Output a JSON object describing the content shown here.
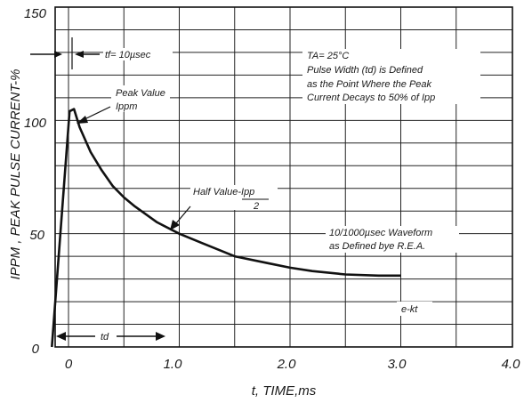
{
  "chart_data": {
    "type": "line",
    "title": "",
    "xlabel": "t, TIME,ms",
    "ylabel": "IPPM , PEAK PULSE CURRENT-%",
    "xlim": [
      -0.15,
      4.0
    ],
    "ylim": [
      0,
      150
    ],
    "x_ticks": [
      "0",
      "1.0",
      "2.0",
      "3.0",
      "4.0"
    ],
    "y_ticks": [
      "0",
      "50",
      "100",
      "150"
    ],
    "grid": true,
    "series": [
      {
        "x": [
          -0.15,
          0.01,
          0.05,
          0.1,
          0.2,
          0.3,
          0.4,
          0.5,
          0.6,
          0.8,
          1.0,
          1.2,
          1.5,
          1.8,
          2.0,
          2.2,
          2.5,
          2.8,
          3.0
        ],
        "y": [
          0,
          104,
          105,
          97,
          86,
          78,
          71,
          66,
          62,
          55,
          50,
          46,
          40,
          37,
          35,
          33.5,
          32,
          31.5,
          31.5
        ]
      }
    ],
    "annotations": {
      "tf": "tf= 10µsec",
      "ta": "TA= 25°C",
      "pulse_width_1": "Pulse Width (td) is Defined",
      "pulse_width_2": "as the Point Where the Peak",
      "pulse_width_3": "Current Decays to 50% of Ipp",
      "peak_1": "Peak Value",
      "peak_2": "Ippm",
      "half_1": "Half Value-Ipp",
      "half_2": "2",
      "waveform_1": "10/1000µsec Waveform",
      "waveform_2": "as Defined bye R.E.A.",
      "ekt": "e-kt",
      "td": "td"
    }
  }
}
